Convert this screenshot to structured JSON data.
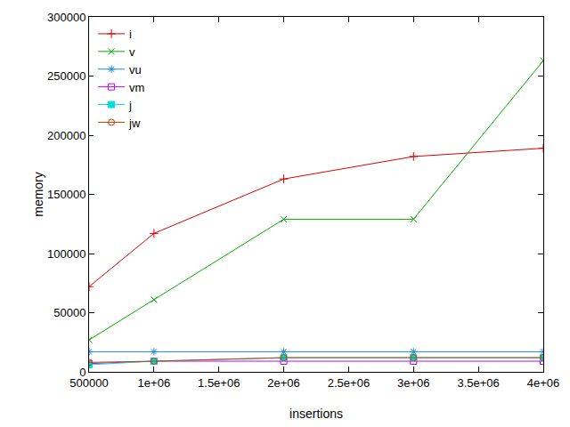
{
  "chart_data": {
    "type": "line",
    "x_label": "insertions",
    "y_label": "memory",
    "x": [
      500000,
      1000000,
      2000000,
      3000000,
      4000000
    ],
    "series": [
      {
        "name": "i",
        "color": "#dd0000",
        "marker": "plus",
        "values": [
          72000,
          117000,
          163000,
          182000,
          189000
        ]
      },
      {
        "name": "v",
        "color": "#00b000",
        "marker": "x",
        "values": [
          27000,
          61000,
          129000,
          129000,
          263000
        ]
      },
      {
        "name": "vu",
        "color": "#1e88d8",
        "marker": "asterisk",
        "values": [
          17000,
          17000,
          17000,
          17000,
          17000
        ]
      },
      {
        "name": "vm",
        "color": "#c000ff",
        "marker": "open square",
        "values": [
          7000,
          9000,
          9000,
          9000,
          9000
        ]
      },
      {
        "name": "j",
        "color": "#00dddd",
        "marker": "square",
        "values": [
          6000,
          9000,
          12000,
          12000,
          12000
        ]
      },
      {
        "name": "jw",
        "color": "#c04000",
        "marker": "open circle",
        "values": [
          8000,
          9000,
          12000,
          12000,
          12000
        ]
      }
    ],
    "xlim": [
      500000,
      4000000
    ],
    "xticks": [
      500000,
      {
        "value": 1000000,
        "label": "1e+06"
      },
      {
        "value": 1500000,
        "label": "1.5e+06"
      },
      {
        "value": 2000000,
        "label": "2e+06"
      },
      {
        "value": 2500000,
        "label": "2.5e+06"
      },
      {
        "value": 3000000,
        "label": "3e+06"
      },
      {
        "value": 3500000,
        "label": "3.5e+06"
      },
      {
        "value": 4000000,
        "label": "4e+06"
      }
    ],
    "ylim": [
      0,
      300000
    ],
    "yticks": [
      0,
      50000,
      100000,
      150000,
      200000,
      250000,
      300000
    ],
    "grid": false,
    "legend": "top left"
  }
}
